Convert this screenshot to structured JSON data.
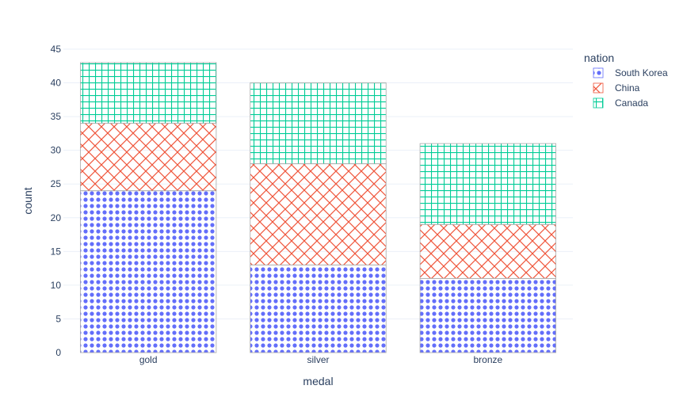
{
  "chart_data": {
    "type": "bar",
    "stacked": true,
    "categories": [
      "gold",
      "silver",
      "bronze"
    ],
    "series": [
      {
        "name": "South Korea",
        "values": [
          24,
          13,
          11
        ],
        "color": "#636efa",
        "pattern": "dots"
      },
      {
        "name": "China",
        "values": [
          10,
          15,
          8
        ],
        "color": "#EF553B",
        "pattern": "crosshatch-diagonal"
      },
      {
        "name": "Canada",
        "values": [
          9,
          12,
          12
        ],
        "color": "#00cc96",
        "pattern": "grid"
      }
    ],
    "xlabel": "medal",
    "ylabel": "count",
    "ylim": [
      0,
      45
    ],
    "yticks": [
      0,
      5,
      10,
      15,
      20,
      25,
      30,
      35,
      40,
      45
    ],
    "legend_title": "nation",
    "legend_position": "top-right",
    "grid": true
  }
}
